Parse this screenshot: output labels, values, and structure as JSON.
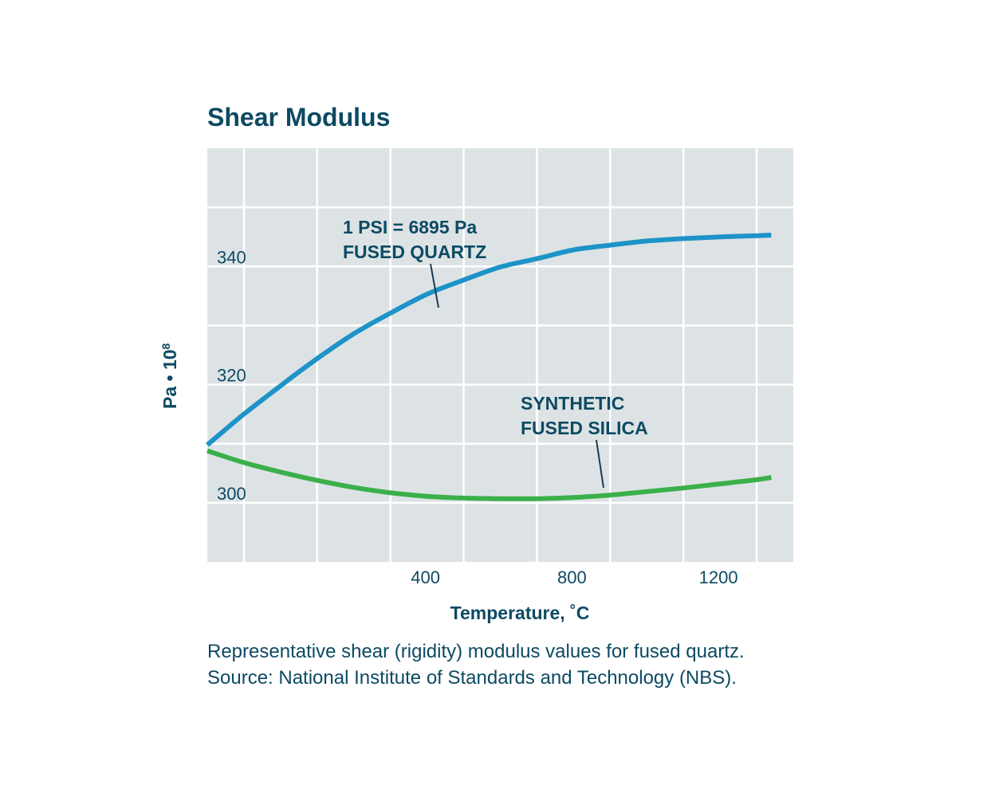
{
  "chart_data": {
    "type": "line",
    "title": "Shear Modulus",
    "xlabel": "Temperature, ˚C",
    "ylabel": "Pa • 10",
    "ylabel_exponent": "8",
    "xlim": [
      -200,
      1400
    ],
    "ylim": [
      290,
      360
    ],
    "x_ticks": [
      400,
      800,
      1200
    ],
    "x_tick_labels": [
      "400",
      "800",
      "1200"
    ],
    "y_ticks": [
      300,
      320,
      340
    ],
    "y_tick_labels": [
      "300",
      "320",
      "340"
    ],
    "grid": true,
    "series": [
      {
        "name": "FUSED QUARTZ",
        "color": "#1d93c8",
        "x": [
          -200,
          -100,
          0,
          100,
          200,
          300,
          400,
          500,
          600,
          700,
          800,
          900,
          1000,
          1100,
          1200,
          1300,
          1340
        ],
        "y": [
          309.8,
          315.0,
          319.8,
          324.4,
          328.6,
          332.1,
          335.3,
          337.7,
          339.9,
          341.3,
          342.8,
          343.6,
          344.3,
          344.7,
          345.0,
          345.2,
          345.3
        ]
      },
      {
        "name": "SYNTHETIC FUSED SILICA",
        "color": "#3bb04a",
        "x": [
          -200,
          -100,
          0,
          100,
          200,
          300,
          400,
          500,
          600,
          700,
          800,
          900,
          1000,
          1100,
          1200,
          1300,
          1340
        ],
        "y": [
          308.8,
          306.8,
          305.2,
          303.8,
          302.6,
          301.7,
          301.1,
          300.8,
          300.7,
          300.7,
          300.9,
          301.3,
          301.9,
          302.5,
          303.2,
          303.9,
          304.3
        ]
      }
    ],
    "annotations": [
      {
        "lines": [
          "1 PSI = 6895 Pa",
          "FUSED QUARTZ"
        ],
        "target": "FUSED QUARTZ"
      },
      {
        "lines": [
          "SYNTHETIC",
          "FUSED SILICA"
        ],
        "target": "SYNTHETIC FUSED SILICA"
      }
    ],
    "caption": [
      "Representative shear (rigidity) modulus values for fused quartz.",
      "Source: National Institute of Standards and Technology (NBS)."
    ],
    "colors": {
      "plot_background": "#dde3e5",
      "grid": "#ffffff",
      "text": "#0d4a63",
      "leader": "#1a3a52"
    }
  }
}
